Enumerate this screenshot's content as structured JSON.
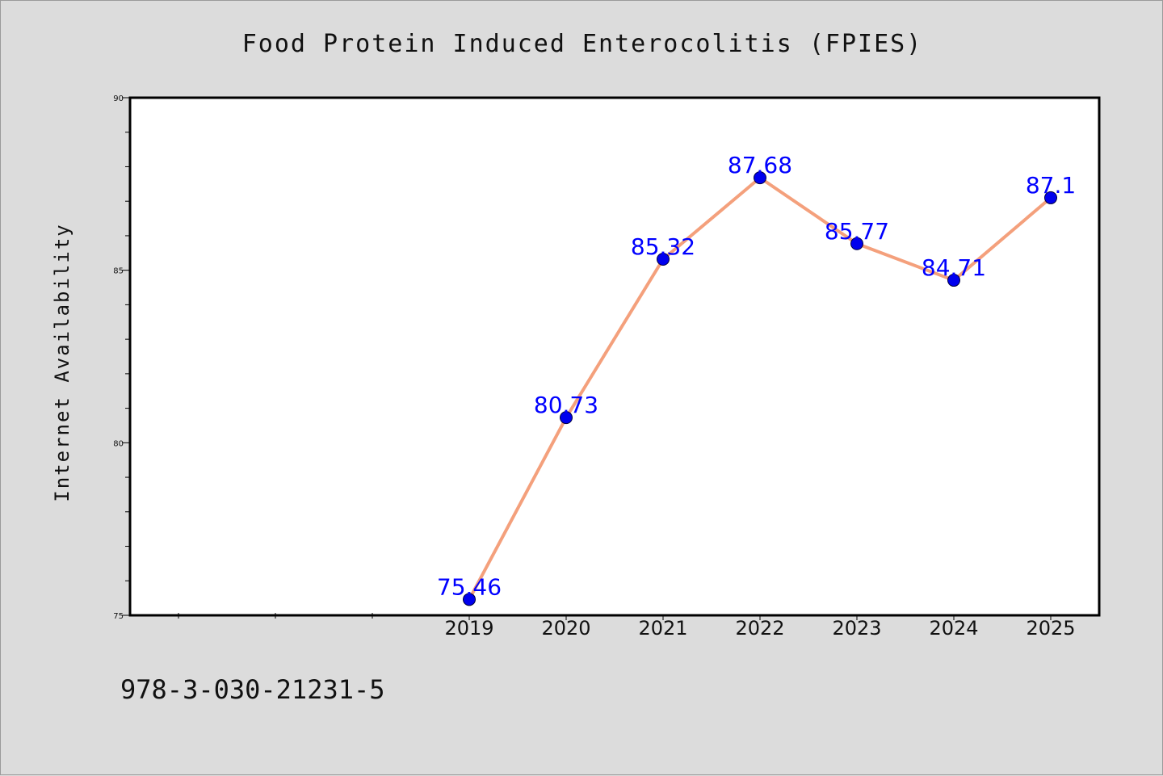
{
  "chart_data": {
    "type": "line",
    "title": "Food Protein Induced Enterocolitis (FPIES)",
    "xlabel": "",
    "ylabel": "Internet Availability",
    "x": [
      "2019",
      "2020",
      "2021",
      "2022",
      "2023",
      "2024",
      "2025"
    ],
    "series": [
      {
        "values": [
          75.46,
          80.73,
          85.32,
          87.68,
          85.77,
          84.71,
          87.1
        ]
      }
    ],
    "data_labels": [
      "75.46",
      "80.73",
      "85.32",
      "87.68",
      "85.77",
      "84.71",
      "87.1"
    ],
    "yticks": [
      "75",
      "80",
      "85",
      "90"
    ],
    "ylim": [
      75,
      90
    ],
    "grid": false,
    "legend": "none",
    "colors": {
      "line": "#f4a07c",
      "marker": "#0000ee",
      "label": "#0000ff",
      "background": "#dcdcdc",
      "plot_area": "#ffffff"
    }
  },
  "footer": {
    "code": "978-3-030-21231-5"
  }
}
